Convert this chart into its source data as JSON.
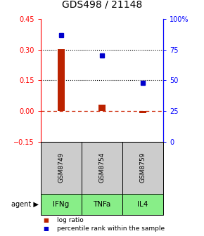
{
  "title": "GDS498 / 21148",
  "samples": [
    "GSM8749",
    "GSM8754",
    "GSM8759"
  ],
  "agents": [
    "IFNg",
    "TNFa",
    "IL4"
  ],
  "log_ratios": [
    0.302,
    0.032,
    -0.01
  ],
  "percentile_ranks": [
    87.0,
    70.0,
    48.0
  ],
  "ylim_left": [
    -0.15,
    0.45
  ],
  "ylim_right": [
    0,
    100
  ],
  "yticks_left": [
    -0.15,
    0.0,
    0.15,
    0.3,
    0.45
  ],
  "yticks_right": [
    0,
    25,
    50,
    75,
    100
  ],
  "ytick_labels_right": [
    "0",
    "25",
    "50",
    "75",
    "100%"
  ],
  "hlines": [
    0.15,
    0.3
  ],
  "bar_color": "#bb2200",
  "point_color": "#0000cc",
  "zero_line_color": "#cc2200",
  "agent_bg_color": "#88ee88",
  "sample_bg_color": "#cccccc",
  "bar_width": 0.18,
  "title_fontsize": 10,
  "tick_fontsize": 7,
  "legend_fontsize": 6.5,
  "sample_fontsize": 6.5,
  "agent_fontsize": 7.5
}
